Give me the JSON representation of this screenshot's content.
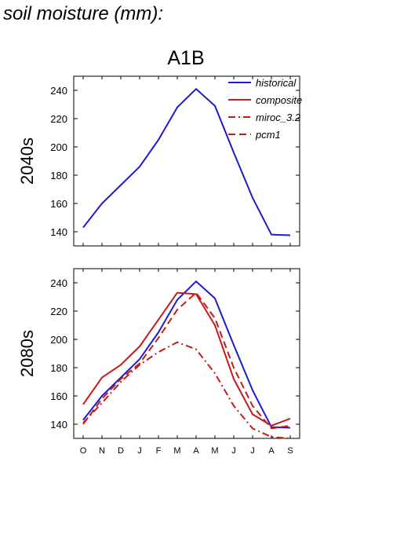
{
  "figure_title": "soil moisture (mm):",
  "scenario": "A1B",
  "colors": {
    "historical": "#1c1ccc",
    "model": "#c41a1a",
    "axis": "#000000"
  },
  "legend": [
    {
      "label": "historical",
      "color": "#1c1ccc",
      "style": "solid"
    },
    {
      "label": "composite",
      "color": "#c41a1a",
      "style": "solid"
    },
    {
      "label": "miroc_3.2",
      "color": "#c41a1a",
      "style": "dashdot"
    },
    {
      "label": "pcm1",
      "color": "#c41a1a",
      "style": "dashed"
    }
  ],
  "chart_data": [
    {
      "type": "line",
      "row_label": "2040s",
      "categories": [
        "O",
        "N",
        "D",
        "J",
        "F",
        "M",
        "A",
        "M",
        "J",
        "J",
        "A",
        "S"
      ],
      "ylim": [
        130,
        250
      ],
      "yticks": [
        140,
        160,
        180,
        200,
        220,
        240
      ],
      "series": [
        {
          "name": "historical",
          "color": "#1c1ccc",
          "style": "solid",
          "values": [
            143,
            160,
            173,
            186,
            205,
            228,
            241,
            229,
            196,
            164,
            138,
            137.5
          ]
        }
      ]
    },
    {
      "type": "line",
      "row_label": "2080s",
      "categories": [
        "O",
        "N",
        "D",
        "J",
        "F",
        "M",
        "A",
        "M",
        "J",
        "J",
        "A",
        "S"
      ],
      "ylim": [
        130,
        250
      ],
      "yticks": [
        140,
        160,
        180,
        200,
        220,
        240
      ],
      "series": [
        {
          "name": "historical",
          "color": "#1c1ccc",
          "style": "solid",
          "values": [
            143,
            160,
            173,
            186,
            205,
            228,
            241,
            229,
            196,
            164,
            138,
            137.5
          ]
        },
        {
          "name": "composite",
          "color": "#c41a1a",
          "style": "solid",
          "values": [
            154,
            173,
            182,
            195,
            214,
            233,
            232,
            210,
            172,
            147,
            139,
            144
          ]
        },
        {
          "name": "miroc_3.2",
          "color": "#c41a1a",
          "style": "dashdot",
          "values": [
            141,
            155,
            170,
            182,
            191,
            198,
            193,
            176,
            153,
            137,
            131,
            130
          ]
        },
        {
          "name": "pcm1",
          "color": "#c41a1a",
          "style": "dashed",
          "values": [
            140,
            158,
            172,
            183,
            201,
            221,
            233,
            215,
            180,
            153,
            137,
            139
          ]
        }
      ]
    }
  ]
}
